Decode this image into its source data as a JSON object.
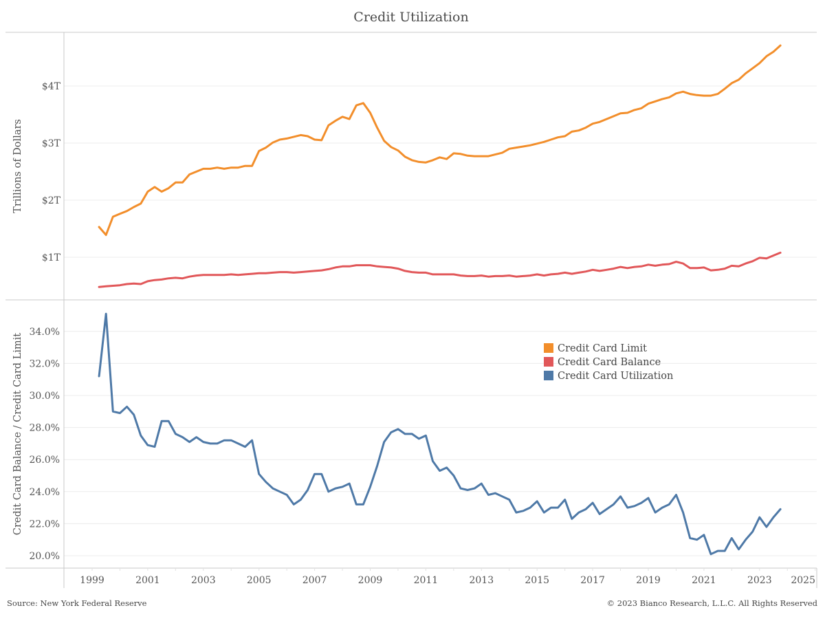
{
  "chart_data": [
    {
      "type": "line",
      "panel": "top",
      "title": "Credit Utilization",
      "ylabel": "Trillions of Dollars",
      "xlabel": "",
      "ylim": [
        0,
        4.95
      ],
      "yticks": [
        1,
        2,
        3,
        4
      ],
      "ytick_labels": [
        "$1T",
        "$2T",
        "$3T",
        "$4T"
      ],
      "xlim": [
        1998,
        2025
      ],
      "grid": true,
      "x_start": 1999.25,
      "x_step": 0.25,
      "series": [
        {
          "name": "Credit Card Limit",
          "color": "#F28E2B",
          "values": [
            1.53,
            1.39,
            1.71,
            1.76,
            1.81,
            1.88,
            1.94,
            2.15,
            2.23,
            2.15,
            2.21,
            2.31,
            2.31,
            2.45,
            2.5,
            2.55,
            2.55,
            2.57,
            2.55,
            2.57,
            2.57,
            2.6,
            2.6,
            2.86,
            2.92,
            3.01,
            3.06,
            3.08,
            3.11,
            3.14,
            3.12,
            3.06,
            3.05,
            3.31,
            3.39,
            3.46,
            3.42,
            3.66,
            3.7,
            3.53,
            3.27,
            3.04,
            2.93,
            2.87,
            2.76,
            2.7,
            2.67,
            2.66,
            2.7,
            2.75,
            2.72,
            2.82,
            2.81,
            2.78,
            2.77,
            2.77,
            2.77,
            2.8,
            2.83,
            2.9,
            2.92,
            2.94,
            2.96,
            2.99,
            3.02,
            3.06,
            3.1,
            3.12,
            3.2,
            3.22,
            3.27,
            3.34,
            3.37,
            3.42,
            3.47,
            3.52,
            3.53,
            3.58,
            3.61,
            3.69,
            3.73,
            3.77,
            3.8,
            3.87,
            3.9,
            3.86,
            3.84,
            3.83,
            3.83,
            3.86,
            3.95,
            4.05,
            4.11,
            4.22,
            4.31,
            4.4,
            4.52,
            4.6,
            4.71
          ]
        },
        {
          "name": "Credit Card Balance",
          "color": "#E15759",
          "values": [
            0.48,
            0.49,
            0.5,
            0.51,
            0.53,
            0.54,
            0.53,
            0.58,
            0.6,
            0.61,
            0.63,
            0.64,
            0.63,
            0.66,
            0.68,
            0.69,
            0.69,
            0.69,
            0.69,
            0.7,
            0.69,
            0.7,
            0.71,
            0.72,
            0.72,
            0.73,
            0.74,
            0.74,
            0.73,
            0.74,
            0.75,
            0.76,
            0.77,
            0.79,
            0.82,
            0.84,
            0.84,
            0.86,
            0.86,
            0.86,
            0.84,
            0.83,
            0.82,
            0.8,
            0.76,
            0.74,
            0.73,
            0.73,
            0.7,
            0.7,
            0.7,
            0.7,
            0.68,
            0.67,
            0.67,
            0.68,
            0.66,
            0.67,
            0.67,
            0.68,
            0.66,
            0.67,
            0.68,
            0.7,
            0.68,
            0.7,
            0.71,
            0.73,
            0.71,
            0.73,
            0.75,
            0.78,
            0.76,
            0.78,
            0.8,
            0.83,
            0.81,
            0.83,
            0.84,
            0.87,
            0.85,
            0.87,
            0.88,
            0.92,
            0.89,
            0.81,
            0.81,
            0.82,
            0.77,
            0.78,
            0.8,
            0.85,
            0.84,
            0.89,
            0.93,
            0.99,
            0.98,
            1.03,
            1.08
          ]
        }
      ]
    },
    {
      "type": "line",
      "panel": "bottom",
      "ylabel": "Credit Card Balance / Credit Card Limit",
      "xlabel": "",
      "ylim": [
        19.2,
        35.8
      ],
      "yticks": [
        20,
        22,
        24,
        26,
        28,
        30,
        32,
        34
      ],
      "ytick_labels": [
        "20.0%",
        "22.0%",
        "24.0%",
        "26.0%",
        "28.0%",
        "30.0%",
        "32.0%",
        "34.0%"
      ],
      "xlim": [
        1998,
        2025
      ],
      "xticks": [
        1999,
        2001,
        2003,
        2005,
        2007,
        2009,
        2011,
        2013,
        2015,
        2017,
        2019,
        2021,
        2023,
        2025
      ],
      "xtick_labels": [
        "1999",
        "2001",
        "2003",
        "2005",
        "2007",
        "2009",
        "2011",
        "2013",
        "2015",
        "2017",
        "2019",
        "2021",
        "2023",
        "2025"
      ],
      "grid": true,
      "x_start": 1999.25,
      "x_step": 0.25,
      "series": [
        {
          "name": "Credit Card Utilization",
          "color": "#4E79A7",
          "values": [
            31.2,
            35.1,
            29.0,
            28.9,
            29.3,
            28.8,
            27.5,
            26.9,
            26.8,
            28.4,
            28.4,
            27.6,
            27.4,
            27.1,
            27.4,
            27.1,
            27.0,
            27.0,
            27.2,
            27.2,
            27.0,
            26.8,
            27.2,
            25.1,
            24.6,
            24.2,
            24.0,
            23.8,
            23.2,
            23.5,
            24.1,
            25.1,
            25.1,
            24.0,
            24.2,
            24.3,
            24.5,
            23.2,
            23.2,
            24.3,
            25.6,
            27.1,
            27.7,
            27.9,
            27.6,
            27.6,
            27.3,
            27.5,
            25.9,
            25.3,
            25.5,
            25.0,
            24.2,
            24.1,
            24.2,
            24.5,
            23.8,
            23.9,
            23.7,
            23.5,
            22.7,
            22.8,
            23.0,
            23.4,
            22.7,
            23.0,
            23.0,
            23.5,
            22.3,
            22.7,
            22.9,
            23.3,
            22.6,
            22.9,
            23.2,
            23.7,
            23.0,
            23.1,
            23.3,
            23.6,
            22.7,
            23.0,
            23.2,
            23.8,
            22.7,
            21.1,
            21.0,
            21.3,
            20.1,
            20.3,
            20.3,
            21.1,
            20.4,
            21.0,
            21.5,
            22.4,
            21.8,
            22.4,
            22.9
          ]
        }
      ]
    }
  ],
  "legend": {
    "placement": "center-right of bottom panel",
    "items": [
      {
        "label": "Credit Card Limit",
        "color": "#F28E2B"
      },
      {
        "label": "Credit Card Balance",
        "color": "#E15759"
      },
      {
        "label": "Credit Card Utilization",
        "color": "#4E79A7"
      }
    ]
  },
  "header": {
    "title": "Credit Utilization"
  },
  "footer": {
    "source": "Source: New York Federal Reserve",
    "copyright": "© 2023 Bianco Research, L.L.C. All Rights Reserved"
  }
}
